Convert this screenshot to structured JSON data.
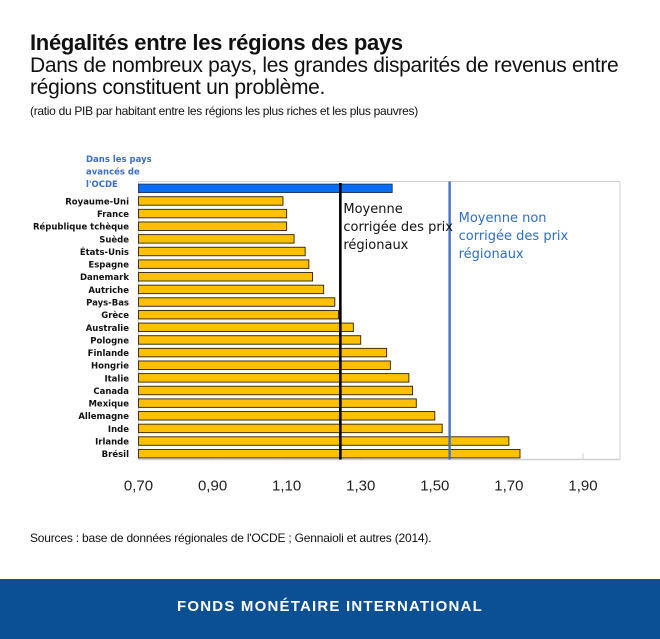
{
  "header": {
    "title": "Inégalités entre les régions des pays",
    "subtitle": "Dans de nombreux pays, les grandes disparités de revenus entre régions constituent un problème.",
    "note": "(ratio du PIB par habitant entre les régions les plus riches et les plus pauvres)"
  },
  "chart_data": {
    "type": "bar",
    "orientation": "horizontal",
    "title": "Inégalités entre les régions des pays",
    "xlabel": "",
    "ylabel": "",
    "xlim": [
      0.7,
      2.0
    ],
    "x_ticks": [
      "0,70",
      "0,90",
      "1,10",
      "1,30",
      "1,50",
      "1,70",
      "1,90"
    ],
    "x_tick_values": [
      0.7,
      0.9,
      1.1,
      1.3,
      1.5,
      1.7,
      1.9
    ],
    "grid": false,
    "highlight": {
      "label_lines": [
        "Dans les pays",
        "avancés de",
        "l'OCDE"
      ],
      "value": 1.385,
      "color": "#0a6cf5"
    },
    "categories": [
      "Royaume-Uni",
      "France",
      "République tchèque",
      "Suède",
      "États-Unis",
      "Espagne",
      "Danemark",
      "Autriche",
      "Pays-Bas",
      "Grèce",
      "Australie",
      "Pologne",
      "Finlande",
      "Hongrie",
      "Italie",
      "Canada",
      "Mexique",
      "Allemagne",
      "Inde",
      "Irlande",
      "Brésil"
    ],
    "values": [
      1.09,
      1.1,
      1.1,
      1.12,
      1.15,
      1.16,
      1.17,
      1.2,
      1.23,
      1.24,
      1.28,
      1.3,
      1.37,
      1.38,
      1.43,
      1.44,
      1.45,
      1.5,
      1.52,
      1.7,
      1.73
    ],
    "bar_color": "#ffc000",
    "reference_lines": [
      {
        "name": "Moyenne corrigée des prix régionaux",
        "label_lines": [
          "Moyenne",
          "corrigée des prix",
          "régionaux"
        ],
        "value": 1.245,
        "color": "#000000"
      },
      {
        "name": "Moyenne non corrigée des prix régionaux",
        "label_lines": [
          "Moyenne non",
          "corrigée des prix",
          "régionaux"
        ],
        "value": 1.54,
        "color": "#4472c4"
      }
    ]
  },
  "source": "Sources : base de données régionales de l'OCDE ; Gennaioli et autres (2014).",
  "footer": {
    "org_name": "FONDS MONÉTAIRE INTERNATIONAL",
    "brand_color": "#0b4f94"
  }
}
